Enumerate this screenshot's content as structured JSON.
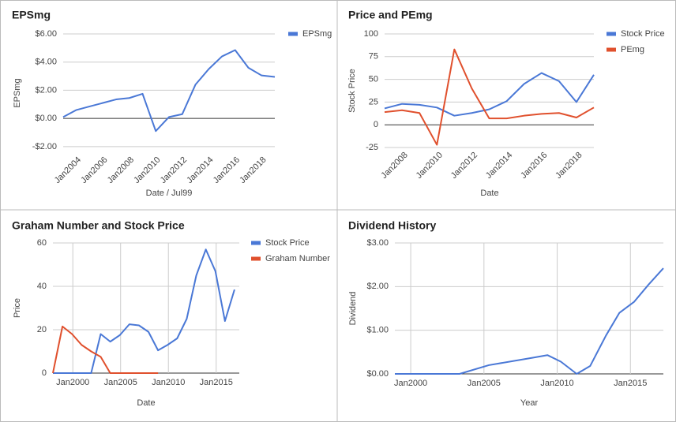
{
  "chart_data": [
    {
      "type": "line",
      "title": "EPSmg",
      "x_label": "Date / Jul99",
      "y_label": "EPSmg",
      "x": [
        "2002-10",
        "2003-10",
        "2004-10",
        "2005-10",
        "2006-10",
        "2007-10",
        "2008-10",
        "2009-10",
        "2010-10",
        "2011-10",
        "2012-10",
        "2013-10",
        "2014-10",
        "2015-10",
        "2016-10",
        "2017-10",
        "2018-10"
      ],
      "series": [
        {
          "name": "EPSmg",
          "color": "#4a78d6",
          "values": [
            0.1,
            0.6,
            0.85,
            1.1,
            1.35,
            1.45,
            1.75,
            -0.9,
            0.1,
            0.3,
            2.4,
            3.5,
            4.4,
            4.85,
            3.6,
            3.05,
            2.95
          ]
        }
      ],
      "xlim": [
        "2002-10",
        "2018-10"
      ],
      "xticks": [
        {
          "value": "2004-01",
          "label": "Jan2004"
        },
        {
          "value": "2006-01",
          "label": "Jan2006"
        },
        {
          "value": "2008-01",
          "label": "Jan2008"
        },
        {
          "value": "2010-01",
          "label": "Jan2010"
        },
        {
          "value": "2012-01",
          "label": "Jan2012"
        },
        {
          "value": "2014-01",
          "label": "Jan2014"
        },
        {
          "value": "2016-01",
          "label": "Jan2016"
        },
        {
          "value": "2018-01",
          "label": "Jan2018"
        }
      ],
      "ylim": [
        -2.4,
        6
      ],
      "yticks": [
        {
          "value": -2,
          "label": "-$2.00"
        },
        {
          "value": 0,
          "label": "$0.00"
        },
        {
          "value": 2,
          "label": "$2.00"
        },
        {
          "value": 4,
          "label": "$4.00"
        },
        {
          "value": 6,
          "label": "$6.00"
        }
      ],
      "grid": true,
      "xgrid": false,
      "legend": "right"
    },
    {
      "type": "line",
      "title": "Price and PEmg",
      "x_label": "Date",
      "y_label": "Stock Price",
      "x": [
        "2006-10",
        "2007-10",
        "2008-10",
        "2009-10",
        "2010-10",
        "2011-10",
        "2012-10",
        "2013-10",
        "2014-10",
        "2015-10",
        "2016-10",
        "2017-10",
        "2018-10"
      ],
      "series": [
        {
          "name": "Stock Price",
          "color": "#4a78d6",
          "values": [
            18,
            23,
            22,
            19,
            10,
            13,
            17,
            26,
            45,
            57,
            48,
            25,
            55
          ]
        },
        {
          "name": "PEmg",
          "color": "#e0502d",
          "values": [
            14,
            16,
            13,
            -22,
            83,
            40,
            7,
            7,
            10,
            12,
            13,
            8,
            19
          ]
        }
      ],
      "xlim": [
        "2006-10",
        "2018-10"
      ],
      "xticks": [
        {
          "value": "2008-01",
          "label": "Jan2008"
        },
        {
          "value": "2010-01",
          "label": "Jan2010"
        },
        {
          "value": "2012-01",
          "label": "Jan2012"
        },
        {
          "value": "2014-01",
          "label": "Jan2014"
        },
        {
          "value": "2016-01",
          "label": "Jan2016"
        },
        {
          "value": "2018-01",
          "label": "Jan2018"
        }
      ],
      "ylim": [
        -25,
        100
      ],
      "yticks": [
        -25,
        0,
        25,
        50,
        75,
        100
      ],
      "grid": true,
      "xgrid": false,
      "legend": "right"
    },
    {
      "type": "line",
      "title": "Graham Number and Stock Price",
      "x_label": "Date",
      "y_label": "Price",
      "x": [
        "1997-12",
        "1998-12",
        "1999-12",
        "2000-12",
        "2001-12",
        "2002-12",
        "2003-12",
        "2004-12",
        "2005-12",
        "2006-12",
        "2007-12",
        "2008-12",
        "2009-12",
        "2010-12",
        "2011-12",
        "2012-12",
        "2013-12",
        "2014-12",
        "2015-12",
        "2016-12"
      ],
      "series": [
        {
          "name": "Stock Price",
          "color": "#4a78d6",
          "values": [
            0,
            0,
            0,
            0,
            0,
            18,
            14.5,
            17.5,
            22.5,
            22,
            19,
            10.5,
            13,
            16,
            25,
            45,
            57,
            47,
            24,
            38.5
          ]
        },
        {
          "name": "Graham Number",
          "color": "#e0502d",
          "values": [
            0,
            21.5,
            18,
            13,
            10,
            7.5,
            0,
            0,
            0,
            0,
            0,
            0,
            null,
            null,
            null,
            null,
            null,
            null,
            null,
            null
          ]
        }
      ],
      "xlim": [
        "1997-12",
        "2017-06"
      ],
      "xticks": [
        {
          "value": "2000-01",
          "label": "Jan2000"
        },
        {
          "value": "2005-01",
          "label": "Jan2005"
        },
        {
          "value": "2010-01",
          "label": "Jan2010"
        },
        {
          "value": "2015-01",
          "label": "Jan2015"
        }
      ],
      "ylim": [
        0,
        60
      ],
      "yticks": [
        0,
        20,
        40,
        60
      ],
      "grid": true,
      "xgrid": true,
      "legend": "right"
    },
    {
      "type": "line",
      "title": "Dividend History",
      "x_label": "Year",
      "y_label": "Dividend",
      "x": [
        "1998-12",
        "2003-05",
        "2005-05",
        "2008-05",
        "2009-05",
        "2010-04",
        "2011-05",
        "2012-04",
        "2013-05",
        "2014-04",
        "2015-04",
        "2016-04",
        "2017-04"
      ],
      "values": [
        0,
        0,
        0.2,
        0.37,
        0.43,
        0.28,
        0,
        0.18,
        0.88,
        1.4,
        1.65,
        2.05,
        2.42
      ],
      "color": "#4a78d6",
      "xlim": [
        "1998-12",
        "2017-04"
      ],
      "xticks": [
        {
          "value": "2000-01",
          "label": "Jan2000"
        },
        {
          "value": "2005-01",
          "label": "Jan2005"
        },
        {
          "value": "2010-01",
          "label": "Jan2010"
        },
        {
          "value": "2015-01",
          "label": "Jan2015"
        }
      ],
      "ylim": [
        0,
        3
      ],
      "yticks": [
        {
          "value": 0,
          "label": "$0.00"
        },
        {
          "value": 1,
          "label": "$1.00"
        },
        {
          "value": 2,
          "label": "$2.00"
        },
        {
          "value": 3,
          "label": "$3.00"
        }
      ],
      "grid": true,
      "xgrid": true
    }
  ]
}
